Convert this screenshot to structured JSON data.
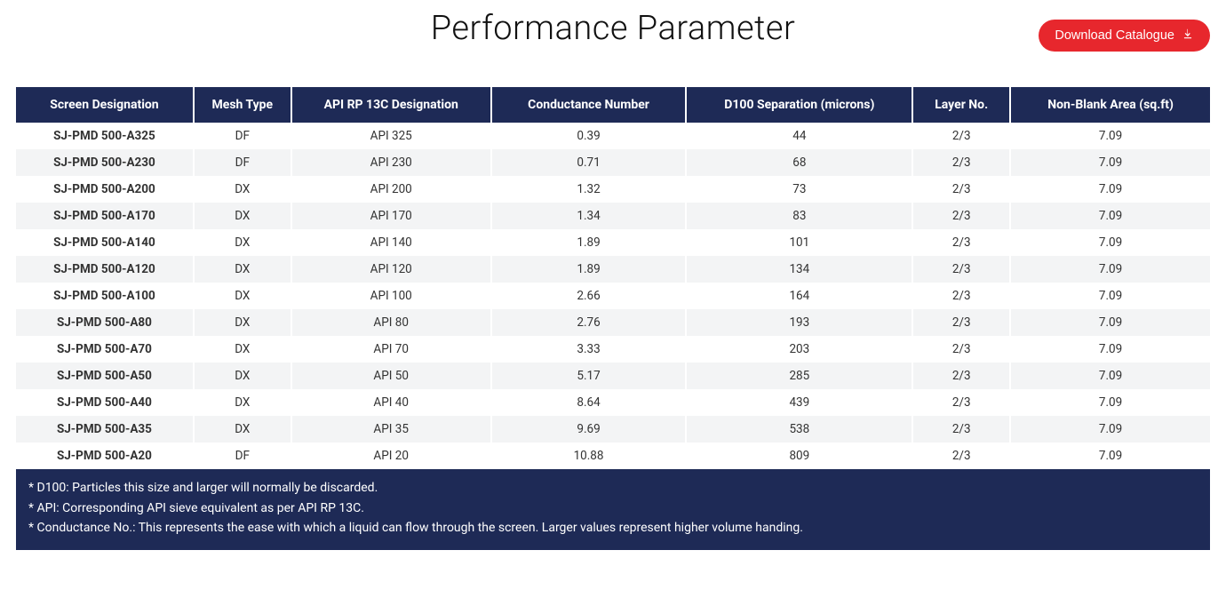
{
  "header": {
    "title": "Performance Parameter",
    "download_label": "Download Catalogue"
  },
  "table": {
    "columns": [
      "Screen Designation",
      "Mesh Type",
      "API RP 13C Designation",
      "Conductance Number",
      "D100 Separation (microns)",
      "Layer No.",
      "Non-Blank Area (sq.ft)"
    ],
    "rows": [
      [
        "SJ-PMD 500-A325",
        "DF",
        "API 325",
        "0.39",
        "44",
        "2/3",
        "7.09"
      ],
      [
        "SJ-PMD 500-A230",
        "DF",
        "API 230",
        "0.71",
        "68",
        "2/3",
        "7.09"
      ],
      [
        "SJ-PMD 500-A200",
        "DX",
        "API 200",
        "1.32",
        "73",
        "2/3",
        "7.09"
      ],
      [
        "SJ-PMD 500-A170",
        "DX",
        "API 170",
        "1.34",
        "83",
        "2/3",
        "7.09"
      ],
      [
        "SJ-PMD 500-A140",
        "DX",
        "API 140",
        "1.89",
        "101",
        "2/3",
        "7.09"
      ],
      [
        "SJ-PMD 500-A120",
        "DX",
        "API 120",
        "1.89",
        "134",
        "2/3",
        "7.09"
      ],
      [
        "SJ-PMD 500-A100",
        "DX",
        "API 100",
        "2.66",
        "164",
        "2/3",
        "7.09"
      ],
      [
        "SJ-PMD 500-A80",
        "DX",
        "API 80",
        "2.76",
        "193",
        "2/3",
        "7.09"
      ],
      [
        "SJ-PMD 500-A70",
        "DX",
        "API 70",
        "3.33",
        "203",
        "2/3",
        "7.09"
      ],
      [
        "SJ-PMD 500-A50",
        "DX",
        "API 50",
        "5.17",
        "285",
        "2/3",
        "7.09"
      ],
      [
        "SJ-PMD 500-A40",
        "DX",
        "API 40",
        "8.64",
        "439",
        "2/3",
        "7.09"
      ],
      [
        "SJ-PMD 500-A35",
        "DX",
        "API 35",
        "9.69",
        "538",
        "2/3",
        "7.09"
      ],
      [
        "SJ-PMD 500-A20",
        "DF",
        "API 20",
        "10.88",
        "809",
        "2/3",
        "7.09"
      ]
    ]
  },
  "footnotes": [
    "* D100: Particles this size and larger will normally be discarded.",
    "* API: Corresponding API sieve equivalent as per API RP 13C.",
    "* Conductance No.: This represents the ease with which a liquid can flow through the screen. Larger values represent higher volume handing."
  ],
  "colors": {
    "header_bg": "#1e2a56",
    "header_text": "#ffffff",
    "row_odd_bg": "#ffffff",
    "row_even_bg": "#f3f4f5",
    "button_bg": "#e7272d",
    "button_text": "#ffffff",
    "title_color": "#111111"
  }
}
